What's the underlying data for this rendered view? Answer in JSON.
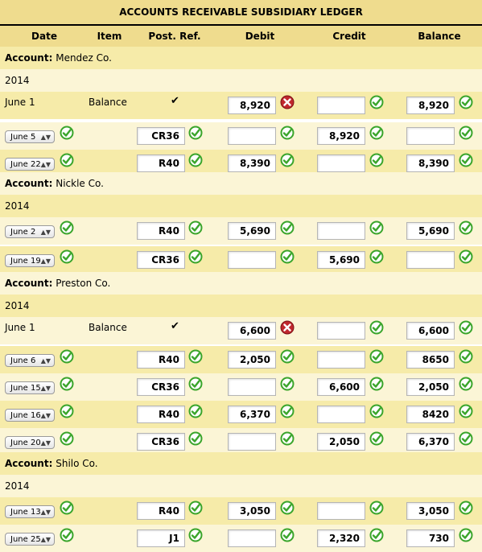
{
  "title": "ACCOUNTS RECEIVABLE SUBSIDIARY LEDGER",
  "headers": [
    "Date",
    "Item",
    "Post. Ref.",
    "Debit",
    "Credit",
    "Balance"
  ],
  "account_label": "Account:",
  "item_balance": "Balance",
  "check_mark": "✔",
  "rows": [
    {
      "kind": "account",
      "name": "Mendez Co."
    },
    {
      "kind": "year",
      "text": "2014"
    },
    {
      "kind": "opening",
      "date": "June 1",
      "debit": "8,920",
      "credit": "",
      "balance": "8,920",
      "status": [
        "wrong",
        "correct",
        "correct"
      ]
    },
    {
      "kind": "entry",
      "date": "June 5",
      "ref": "CR36",
      "debit": "",
      "credit": "8,920",
      "balance": "",
      "status": [
        "correct",
        "correct",
        "correct",
        "correct",
        "correct"
      ]
    },
    {
      "kind": "entry",
      "date": "June 22",
      "ref": "R40",
      "debit": "8,390",
      "credit": "",
      "balance": "8,390",
      "status": [
        "correct",
        "correct",
        "correct",
        "correct",
        "correct"
      ]
    },
    {
      "kind": "account",
      "name": "Nickle Co."
    },
    {
      "kind": "year",
      "text": "2014"
    },
    {
      "kind": "entry",
      "date": "June 2",
      "ref": "R40",
      "debit": "5,690",
      "credit": "",
      "balance": "5,690",
      "status": [
        "correct",
        "correct",
        "correct",
        "correct",
        "correct"
      ]
    },
    {
      "kind": "entry",
      "date": "June 19",
      "ref": "CR36",
      "debit": "",
      "credit": "5,690",
      "balance": "",
      "status": [
        "correct",
        "correct",
        "correct",
        "correct",
        "correct"
      ]
    },
    {
      "kind": "account",
      "name": "Preston Co."
    },
    {
      "kind": "year",
      "text": "2014"
    },
    {
      "kind": "opening",
      "date": "June 1",
      "debit": "6,600",
      "credit": "",
      "balance": "6,600",
      "status": [
        "wrong",
        "correct",
        "correct"
      ]
    },
    {
      "kind": "entry",
      "date": "June 6",
      "ref": "R40",
      "debit": "2,050",
      "credit": "",
      "balance": "8650",
      "status": [
        "correct",
        "correct",
        "correct",
        "correct",
        "correct"
      ]
    },
    {
      "kind": "entry",
      "date": "June 15",
      "ref": "CR36",
      "debit": "",
      "credit": "6,600",
      "balance": "2,050",
      "status": [
        "correct",
        "correct",
        "correct",
        "correct",
        "correct"
      ]
    },
    {
      "kind": "entry",
      "date": "June 16",
      "ref": "R40",
      "debit": "6,370",
      "credit": "",
      "balance": "8420",
      "status": [
        "correct",
        "correct",
        "correct",
        "correct",
        "correct"
      ]
    },
    {
      "kind": "entry",
      "date": "June 20",
      "ref": "CR36",
      "debit": "",
      "credit": "2,050",
      "balance": "6,370",
      "status": [
        "correct",
        "correct",
        "correct",
        "correct",
        "correct"
      ]
    },
    {
      "kind": "account",
      "name": "Shilo Co."
    },
    {
      "kind": "year",
      "text": "2014"
    },
    {
      "kind": "entry",
      "date": "June 13",
      "ref": "R40",
      "debit": "3,050",
      "credit": "",
      "balance": "3,050",
      "status": [
        "correct",
        "correct",
        "correct",
        "correct",
        "correct"
      ]
    },
    {
      "kind": "entry",
      "date": "June 25",
      "ref": "J1",
      "debit": "",
      "credit": "2,320",
      "balance": "730",
      "status": [
        "correct",
        "correct",
        "correct",
        "correct",
        "correct"
      ]
    }
  ],
  "colors": {
    "header_bg": "#efdc8e",
    "row_odd": "#f6eba9",
    "row_even": "#fbf5d6",
    "correct": "#3aa52b",
    "wrong": "#c0282d"
  }
}
